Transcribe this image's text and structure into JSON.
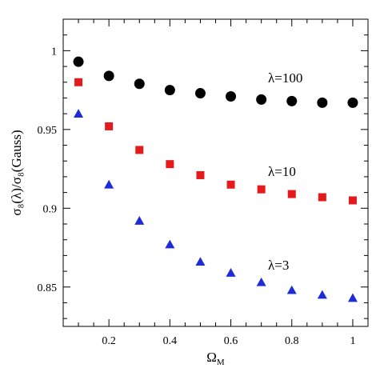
{
  "chart_data": {
    "type": "scatter",
    "xlabel_main": "Ω",
    "xlabel_sub": "M",
    "ylabel": "σ₈(λ)/σ₈(Gauss)",
    "xlim": [
      0.05,
      1.05
    ],
    "ylim": [
      0.825,
      1.02
    ],
    "x_ticks": [
      0.2,
      0.4,
      0.6,
      0.8,
      1.0
    ],
    "x_tick_labels": [
      "0.2",
      "0.4",
      "0.6",
      "0.8",
      "1"
    ],
    "y_ticks": [
      0.85,
      0.9,
      0.95,
      1.0
    ],
    "y_tick_labels": [
      "0.85",
      "0.9",
      "0.95",
      "1"
    ],
    "grid": false,
    "legend": "none",
    "series": [
      {
        "name": "λ=100",
        "marker": "circle",
        "color": "#000000",
        "x": [
          0.1,
          0.2,
          0.3,
          0.4,
          0.5,
          0.6,
          0.7,
          0.8,
          0.9,
          1.0
        ],
        "values": [
          0.993,
          0.984,
          0.979,
          0.975,
          0.973,
          0.971,
          0.969,
          0.968,
          0.967,
          0.967
        ]
      },
      {
        "name": "λ=10",
        "marker": "square",
        "color": "#e41a1c",
        "x": [
          0.1,
          0.2,
          0.3,
          0.4,
          0.5,
          0.6,
          0.7,
          0.8,
          0.9,
          1.0
        ],
        "values": [
          0.98,
          0.952,
          0.937,
          0.928,
          0.921,
          0.915,
          0.912,
          0.909,
          0.907,
          0.905
        ]
      },
      {
        "name": "λ=3",
        "marker": "triangle",
        "color": "#1f2bd6",
        "x": [
          0.1,
          0.2,
          0.3,
          0.4,
          0.5,
          0.6,
          0.7,
          0.8,
          0.9,
          1.0
        ],
        "values": [
          0.96,
          0.915,
          0.892,
          0.877,
          0.866,
          0.859,
          0.853,
          0.848,
          0.845,
          0.843
        ]
      }
    ]
  }
}
